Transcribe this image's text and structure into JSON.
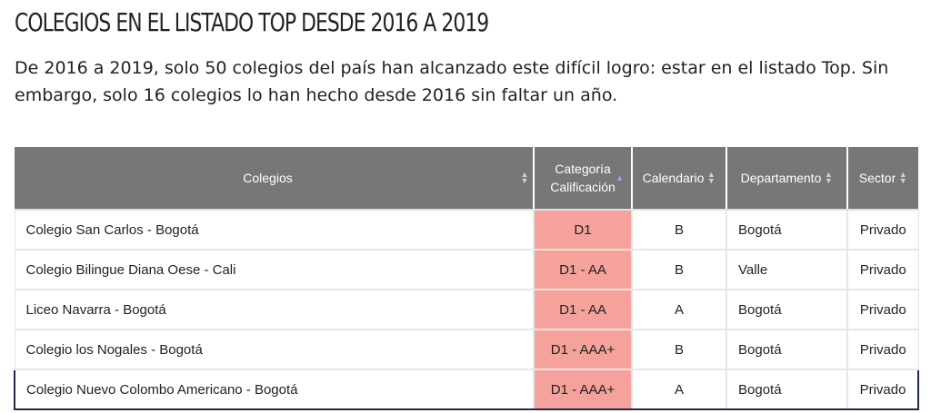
{
  "header": {
    "title": "COLEGIOS EN EL LISTADO TOP DESDE 2016 A 2019",
    "intro": "De 2016 a 2019, solo 50 colegios del país han alcanzado este difícil logro: estar en el listado Top. Sin embargo, solo 16 colegios lo han hecho desde 2016 sin faltar un año."
  },
  "table": {
    "columns": [
      {
        "label_line1": "Colegios",
        "label_line2": "",
        "sort": "both"
      },
      {
        "label_line1": "Categoría",
        "label_line2": "Calificación",
        "sort": "asc"
      },
      {
        "label_line1": "Calendario",
        "label_line2": "",
        "sort": "both"
      },
      {
        "label_line1": "Departamento",
        "label_line2": "",
        "sort": "both"
      },
      {
        "label_line1": "Sector",
        "label_line2": "",
        "sort": "both"
      }
    ],
    "rows": [
      {
        "colegio": "Colegio San Carlos - Bogotá",
        "categoria": "D1",
        "calendario": "B",
        "departamento": "Bogotá",
        "sector": "Privado"
      },
      {
        "colegio": "Colegio Bilingue Diana Oese - Cali",
        "categoria": "D1 - AA",
        "calendario": "B",
        "departamento": "Valle",
        "sector": "Privado"
      },
      {
        "colegio": "Liceo Navarra - Bogotá",
        "categoria": "D1 - AA",
        "calendario": "A",
        "departamento": "Bogotá",
        "sector": "Privado"
      },
      {
        "colegio": "Colegio los Nogales - Bogotá",
        "categoria": "D1 - AAA+",
        "calendario": "B",
        "departamento": "Bogotá",
        "sector": "Privado"
      },
      {
        "colegio": "Colegio Nuevo Colombo Americano - Bogotá",
        "categoria": "D1 - AAA+",
        "calendario": "A",
        "departamento": "Bogotá",
        "sector": "Privado"
      }
    ],
    "highlighted_row_index": 4,
    "colors": {
      "header_bg": "#777777",
      "category_bg": "#f4a29b",
      "highlight_border": "#1d2a4a"
    },
    "icons": {
      "sort_both": "sort-up-down-icon",
      "sort_asc": "sort-up-icon"
    }
  }
}
